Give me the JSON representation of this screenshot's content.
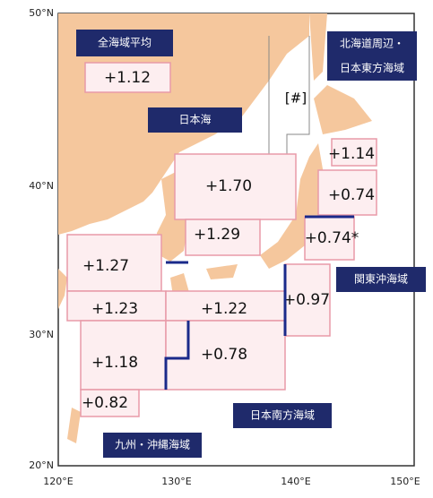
{
  "axes": {
    "lat_labels": [
      "50°N",
      "40°N",
      "30°N",
      "20°N"
    ],
    "lon_labels": [
      "120°E",
      "130°E",
      "140°E",
      "150°E"
    ]
  },
  "regions": [
    {
      "value": "+1.12"
    },
    {
      "value": "+1.70"
    },
    {
      "value": "+1.29"
    },
    {
      "value": "+1.27"
    },
    {
      "value": "+1.23"
    },
    {
      "value": "+1.22"
    },
    {
      "value": "+0.97"
    },
    {
      "value": "+1.18"
    },
    {
      "value": "+0.78"
    },
    {
      "value": "+0.82"
    },
    {
      "value": "+1.14"
    },
    {
      "value": "+0.74"
    },
    {
      "value": "+0.74*"
    }
  ],
  "labels": [
    {
      "lines": [
        "全海域平均"
      ]
    },
    {
      "lines": [
        "日本海"
      ]
    },
    {
      "lines": [
        "北海道周辺・",
        "日本東方海域"
      ]
    },
    {
      "lines": [
        "関東沖海域"
      ]
    },
    {
      "lines": [
        "日本南方海域"
      ]
    },
    {
      "lines": [
        "九州・沖縄海域"
      ]
    }
  ],
  "note": "[#]"
}
